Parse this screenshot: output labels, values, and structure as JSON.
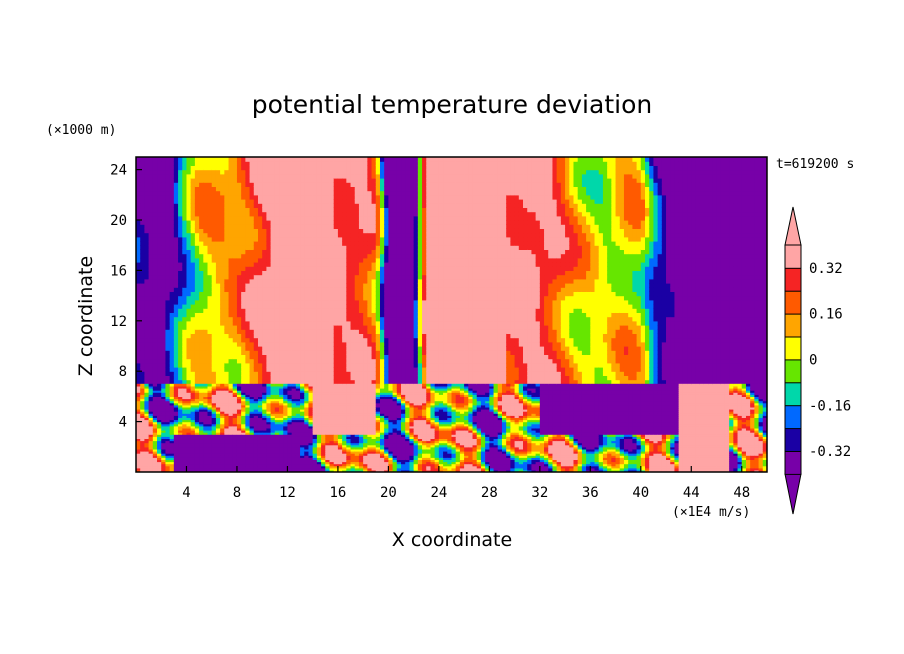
{
  "chart_data": {
    "type": "heatmap",
    "subtype": "filled contour",
    "title": "potential temperature deviation",
    "xlabel": "X coordinate",
    "ylabel": "Z coordinate",
    "x_unit": "(×1E4 m/s)",
    "y_unit": "(×1000 m)",
    "time_label": "t=619200 s",
    "xlim": [
      0,
      50
    ],
    "ylim": [
      0,
      25
    ],
    "x_ticks": [
      4,
      8,
      12,
      16,
      20,
      24,
      28,
      32,
      36,
      40,
      44,
      48
    ],
    "y_ticks": [
      4,
      8,
      12,
      16,
      20,
      24
    ],
    "colorbar": {
      "levels": [
        -0.4,
        -0.32,
        -0.24,
        -0.16,
        -0.08,
        0,
        0.08,
        0.16,
        0.24,
        0.32,
        0.4
      ],
      "tick_values": [
        0.32,
        0.16,
        0,
        -0.16,
        -0.32
      ],
      "tick_labels": [
        "0.32",
        "0.16",
        "0",
        "-0.16",
        "-0.32"
      ],
      "colors": [
        "#7700a8",
        "#1a00a4",
        "#0069ff",
        "#00d7aa",
        "#66e600",
        "#ffff00",
        "#ffa500",
        "#ff5a00",
        "#f52424",
        "#ffa5a5"
      ],
      "extend": "both"
    },
    "upper_layer": {
      "z_range": [
        7,
        25
      ],
      "x": [
        0,
        1,
        2,
        3,
        4,
        5,
        6,
        7,
        8,
        9,
        10,
        11,
        12,
        13,
        14,
        15,
        16,
        17,
        18,
        19,
        20,
        21,
        22,
        23,
        24,
        25,
        26,
        27,
        28,
        29,
        30,
        31,
        32,
        33,
        34,
        35,
        36,
        37,
        38,
        39,
        40,
        41,
        42,
        43,
        44,
        45,
        46,
        47,
        48,
        49,
        50
      ],
      "values": [
        -0.35,
        -0.4,
        -0.45,
        -0.3,
        -0.1,
        0.05,
        0.1,
        0.12,
        0.15,
        0.25,
        0.35,
        0.45,
        0.5,
        0.5,
        0.5,
        0.45,
        0.35,
        0.32,
        0.3,
        0.2,
        -0.45,
        -0.45,
        -0.45,
        0.4,
        0.45,
        0.5,
        0.5,
        0.48,
        0.45,
        0.42,
        0.38,
        0.4,
        0.35,
        0.3,
        0.2,
        0.1,
        0.05,
        0,
        0.05,
        0.1,
        0.05,
        -0.2,
        -0.35,
        -0.45,
        -0.5,
        -0.5,
        -0.5,
        -0.5,
        -0.5,
        -0.5,
        -0.5
      ]
    },
    "lower_layer": {
      "z_range": [
        0,
        7
      ],
      "description_values": "turbulent boundary layer; mixed values from -0.45 to 0.45"
    }
  }
}
